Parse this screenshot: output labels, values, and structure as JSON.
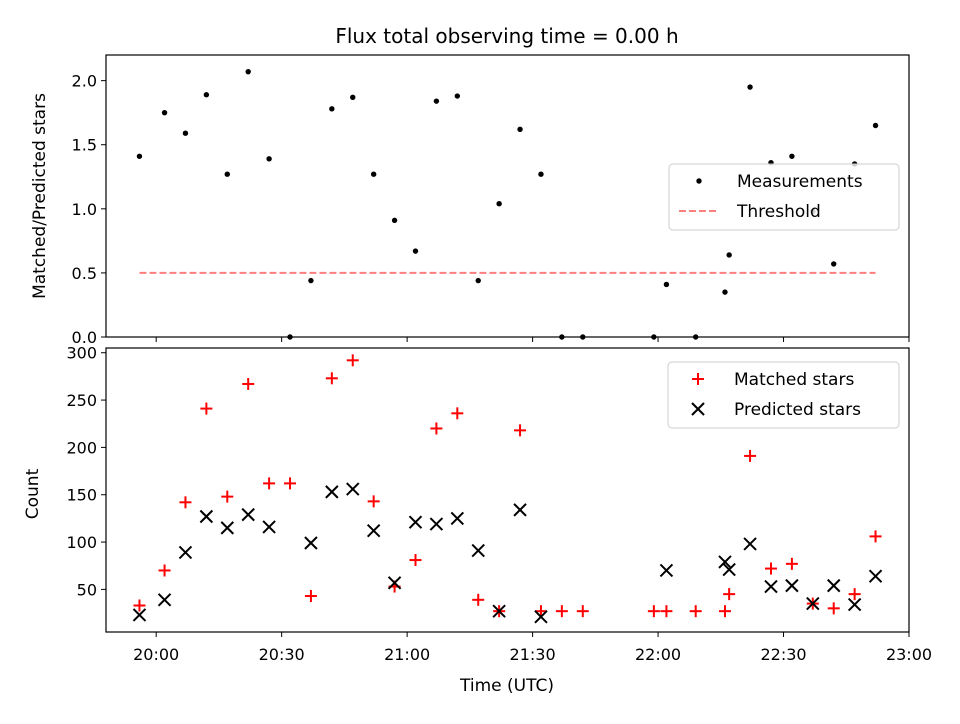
{
  "figure": {
    "title": "Flux total observing time = 0.00 h",
    "xlabel": "Time (UTC)"
  },
  "x_ticks": [
    "20:00",
    "20:30",
    "21:00",
    "21:30",
    "22:00",
    "22:30",
    "23:00"
  ],
  "colors": {
    "measurement": "#000000",
    "threshold": "#ff7f7f",
    "matched": "#ff0000",
    "predicted": "#000000"
  },
  "chart_data": [
    {
      "type": "scatter",
      "ylabel": "Matched/Predicted stars",
      "xlim": [
        "19:48",
        "23:00"
      ],
      "ylim": [
        0,
        2.2
      ],
      "y_ticks": [
        "0.0",
        "0.5",
        "1.0",
        "1.5",
        "2.0"
      ],
      "legend_position": "center-right",
      "series": [
        {
          "name": "Measurements",
          "points": [
            [
              "19:56",
              1.41
            ],
            [
              "20:02",
              1.75
            ],
            [
              "20:07",
              1.59
            ],
            [
              "20:12",
              1.89
            ],
            [
              "20:17",
              1.27
            ],
            [
              "20:22",
              2.07
            ],
            [
              "20:27",
              1.39
            ],
            [
              "20:32",
              0.0
            ],
            [
              "20:37",
              0.44
            ],
            [
              "20:42",
              1.78
            ],
            [
              "20:47",
              1.87
            ],
            [
              "20:52",
              1.27
            ],
            [
              "20:57",
              0.91
            ],
            [
              "21:02",
              0.67
            ],
            [
              "21:07",
              1.84
            ],
            [
              "21:12",
              1.88
            ],
            [
              "21:17",
              0.44
            ],
            [
              "21:22",
              1.04
            ],
            [
              "21:27",
              1.62
            ],
            [
              "21:32",
              1.27
            ],
            [
              "21:37",
              0.0
            ],
            [
              "21:42",
              0.0
            ],
            [
              "21:59",
              0.0
            ],
            [
              "22:02",
              0.41
            ],
            [
              "22:09",
              0.0
            ],
            [
              "22:16",
              0.35
            ],
            [
              "22:17",
              0.64
            ],
            [
              "22:22",
              1.95
            ],
            [
              "22:27",
              1.36
            ],
            [
              "22:32",
              1.41
            ],
            [
              "22:37",
              0.98
            ],
            [
              "22:42",
              0.57
            ],
            [
              "22:47",
              1.35
            ],
            [
              "22:52",
              1.65
            ]
          ]
        },
        {
          "name": "Threshold",
          "style": "dashed-line",
          "points": [
            [
              "19:56",
              0.5
            ],
            [
              "22:52",
              0.5
            ]
          ]
        }
      ]
    },
    {
      "type": "scatter",
      "ylabel": "Count",
      "xlim": [
        "19:48",
        "23:00"
      ],
      "ylim": [
        5,
        305
      ],
      "y_ticks": [
        "50",
        "100",
        "150",
        "200",
        "250",
        "300"
      ],
      "legend_position": "top-right",
      "series": [
        {
          "name": "Matched stars",
          "marker": "plus",
          "points": [
            [
              "19:56",
              33
            ],
            [
              "20:02",
              70
            ],
            [
              "20:07",
              142
            ],
            [
              "20:12",
              241
            ],
            [
              "20:17",
              148
            ],
            [
              "20:22",
              267
            ],
            [
              "20:27",
              162
            ],
            [
              "20:32",
              162
            ],
            [
              "20:37",
              43
            ],
            [
              "20:42",
              273
            ],
            [
              "20:47",
              292
            ],
            [
              "20:52",
              143
            ],
            [
              "20:57",
              53
            ],
            [
              "21:02",
              81
            ],
            [
              "21:07",
              220
            ],
            [
              "21:12",
              236
            ],
            [
              "21:17",
              39
            ],
            [
              "21:22",
              27
            ],
            [
              "21:27",
              218
            ],
            [
              "21:32",
              27
            ],
            [
              "21:37",
              27
            ],
            [
              "21:42",
              27
            ],
            [
              "21:59",
              27
            ],
            [
              "22:02",
              27
            ],
            [
              "22:09",
              27
            ],
            [
              "22:16",
              27
            ],
            [
              "22:17",
              45
            ],
            [
              "22:22",
              191
            ],
            [
              "22:27",
              72
            ],
            [
              "22:32",
              77
            ],
            [
              "22:37",
              35
            ],
            [
              "22:42",
              30
            ],
            [
              "22:47",
              45
            ],
            [
              "22:52",
              106
            ]
          ]
        },
        {
          "name": "Predicted stars",
          "marker": "x",
          "points": [
            [
              "19:56",
              23
            ],
            [
              "20:02",
              39
            ],
            [
              "20:07",
              89
            ],
            [
              "20:12",
              127
            ],
            [
              "20:17",
              115
            ],
            [
              "20:22",
              129
            ],
            [
              "20:27",
              116
            ],
            [
              "20:37",
              99
            ],
            [
              "20:42",
              153
            ],
            [
              "20:47",
              156
            ],
            [
              "20:52",
              112
            ],
            [
              "20:57",
              57
            ],
            [
              "21:02",
              121
            ],
            [
              "21:07",
              119
            ],
            [
              "21:12",
              125
            ],
            [
              "21:17",
              91
            ],
            [
              "21:22",
              27
            ],
            [
              "21:27",
              134
            ],
            [
              "21:32",
              21
            ],
            [
              "22:02",
              70
            ],
            [
              "22:16",
              79
            ],
            [
              "22:17",
              71
            ],
            [
              "22:22",
              98
            ],
            [
              "22:27",
              53
            ],
            [
              "22:32",
              54
            ],
            [
              "22:37",
              35
            ],
            [
              "22:42",
              54
            ],
            [
              "22:47",
              34
            ],
            [
              "22:52",
              64
            ]
          ]
        }
      ]
    }
  ]
}
